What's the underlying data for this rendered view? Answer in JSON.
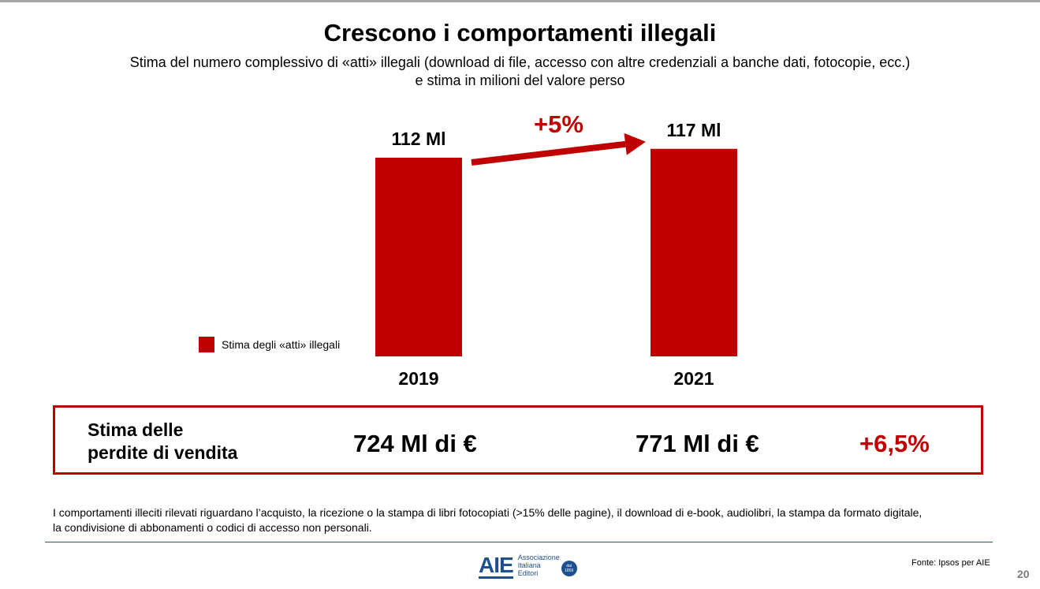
{
  "title": "Crescono i comportamenti illegali",
  "subtitle": [
    "Stima del numero complessivo di «atti» illegali (download di file, accesso con altre credenziali a banche dati, fotocopie, ecc.)",
    "e stima in milioni del valore perso"
  ],
  "chart_data": {
    "type": "bar",
    "categories": [
      "2019",
      "2021"
    ],
    "series": [
      {
        "name": "Stima degli «atti» illegali",
        "values": [
          112,
          117
        ],
        "labels": [
          "112 Ml",
          "117 Ml"
        ]
      }
    ],
    "ylim": [
      0,
      120
    ],
    "growth_label": "+5%",
    "grid": false,
    "legend": "left",
    "color": "#c00000"
  },
  "losses": {
    "label": [
      "Stima delle",
      "perdite di vendita"
    ],
    "value_2019": "724 Ml di €",
    "value_2021": "771 Ml di €",
    "growth": "+6,5%"
  },
  "footnote": [
    "I comportamenti illeciti rilevati riguardano l’acquisto, la ricezione o la stampa di libri fotocopiati (>15% delle pagine), il download di e-book, audiolibri, la stampa da formato digitale,",
    "la condivisione di abbonamenti o codici di accesso non personali."
  ],
  "logo": {
    "mark": "AIE",
    "text": [
      "Associazione",
      "Italiana",
      "Editori"
    ],
    "badge": [
      "dal",
      "1869"
    ]
  },
  "source": "Fonte: Ipsos per AIE",
  "page_number": "20",
  "colors": {
    "accent": "#c00000",
    "brand": "#1f4f8f"
  }
}
